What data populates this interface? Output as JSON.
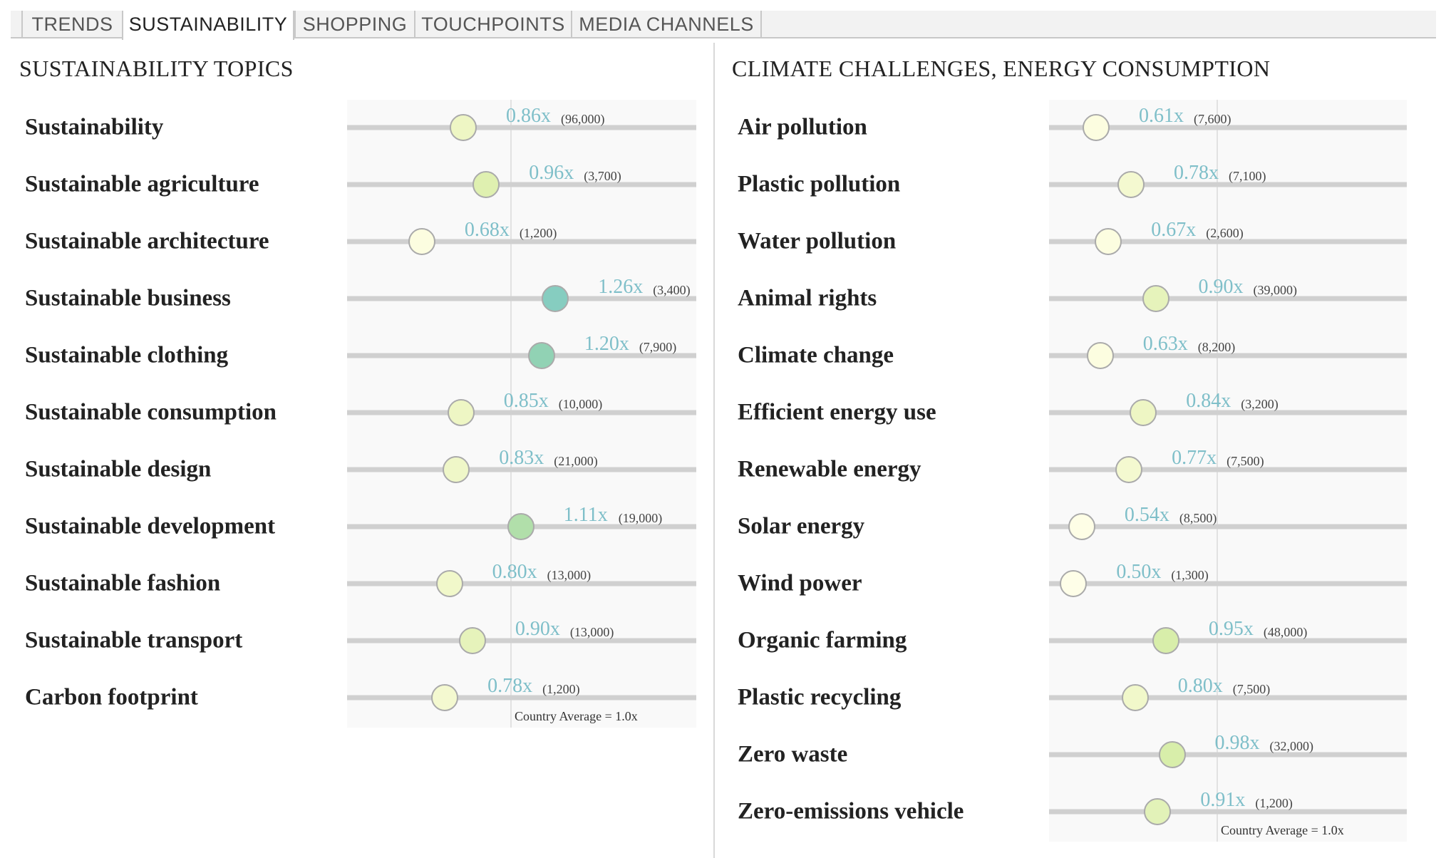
{
  "tabs": [
    {
      "label": "TRENDS",
      "active": false
    },
    {
      "label": "SUSTAINABILITY",
      "active": true
    },
    {
      "label": "SHOPPING",
      "active": false
    },
    {
      "label": "TOUCHPOINTS",
      "active": false
    },
    {
      "label": "MEDIA CHANNELS",
      "active": false
    }
  ],
  "left": {
    "title": "SUSTAINABILITY TOPICS",
    "average_label": "Country Average = 1.0x",
    "rows": [
      {
        "label": "Sustainability",
        "value": 0.86,
        "value_text": "0.86x",
        "count": "(96,000)",
        "color": "#eef6c4"
      },
      {
        "label": "Sustainable agriculture",
        "value": 0.96,
        "value_text": "0.96x",
        "count": "(3,700)",
        "color": "#dff0b0"
      },
      {
        "label": "Sustainable architecture",
        "value": 0.68,
        "value_text": "0.68x",
        "count": "(1,200)",
        "color": "#fcfde0"
      },
      {
        "label": "Sustainable business",
        "value": 1.26,
        "value_text": "1.26x",
        "count": "(3,400)",
        "color": "#86cdc0"
      },
      {
        "label": "Sustainable clothing",
        "value": 1.2,
        "value_text": "1.20x",
        "count": "(7,900)",
        "color": "#91d2b4"
      },
      {
        "label": "Sustainable consumption",
        "value": 0.85,
        "value_text": "0.85x",
        "count": "(10,000)",
        "color": "#eef6c4"
      },
      {
        "label": "Sustainable design",
        "value": 0.83,
        "value_text": "0.83x",
        "count": "(21,000)",
        "color": "#eff7c8"
      },
      {
        "label": "Sustainable development",
        "value": 1.11,
        "value_text": "1.11x",
        "count": "(19,000)",
        "color": "#b1dfaa"
      },
      {
        "label": "Sustainable fashion",
        "value": 0.8,
        "value_text": "0.80x",
        "count": "(13,000)",
        "color": "#f1f8ca"
      },
      {
        "label": "Sustainable transport",
        "value": 0.9,
        "value_text": "0.90x",
        "count": "(13,000)",
        "color": "#e6f3bb"
      },
      {
        "label": "Carbon footprint",
        "value": 0.78,
        "value_text": "0.78x",
        "count": "(1,200)",
        "color": "#f4f9d0"
      }
    ]
  },
  "right": {
    "title": "CLIMATE CHALLENGES, ENERGY CONSUMPTION",
    "average_label": "Country Average = 1.0x",
    "rows": [
      {
        "label": "Air pollution",
        "value": 0.61,
        "value_text": "0.61x",
        "count": "(7,600)",
        "color": "#fcfde0"
      },
      {
        "label": "Plastic pollution",
        "value": 0.78,
        "value_text": "0.78x",
        "count": "(7,100)",
        "color": "#f4f9d0"
      },
      {
        "label": "Water pollution",
        "value": 0.67,
        "value_text": "0.67x",
        "count": "(2,600)",
        "color": "#fcfde0"
      },
      {
        "label": "Animal rights",
        "value": 0.9,
        "value_text": "0.90x",
        "count": "(39,000)",
        "color": "#e6f3bb"
      },
      {
        "label": "Climate change",
        "value": 0.63,
        "value_text": "0.63x",
        "count": "(8,200)",
        "color": "#fcfde0"
      },
      {
        "label": "Efficient energy use",
        "value": 0.84,
        "value_text": "0.84x",
        "count": "(3,200)",
        "color": "#eef6c4"
      },
      {
        "label": "Renewable energy",
        "value": 0.77,
        "value_text": "0.77x",
        "count": "(7,500)",
        "color": "#f4f9d0"
      },
      {
        "label": "Solar energy",
        "value": 0.54,
        "value_text": "0.54x",
        "count": "(8,500)",
        "color": "#fefee6"
      },
      {
        "label": "Wind power",
        "value": 0.5,
        "value_text": "0.50x",
        "count": "(1,300)",
        "color": "#fefee8"
      },
      {
        "label": "Organic farming",
        "value": 0.95,
        "value_text": "0.95x",
        "count": "(48,000)",
        "color": "#d8eeaa"
      },
      {
        "label": "Plastic recycling",
        "value": 0.8,
        "value_text": "0.80x",
        "count": "(7,500)",
        "color": "#f1f8ca"
      },
      {
        "label": "Zero waste",
        "value": 0.98,
        "value_text": "0.98x",
        "count": "(32,000)",
        "color": "#d8eeaa"
      },
      {
        "label": "Zero-emissions vehicle",
        "value": 0.91,
        "value_text": "0.91x",
        "count": "(1,200)",
        "color": "#e2f2b8"
      }
    ]
  }
}
